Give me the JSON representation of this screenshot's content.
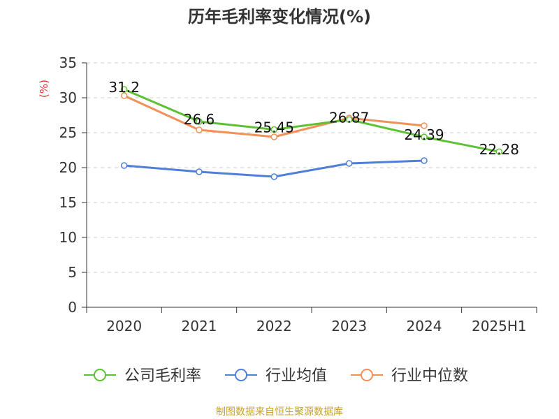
{
  "chart_data": {
    "type": "line",
    "title": "历年毛利率变化情况(%)",
    "ylabel": "(%)",
    "categories": [
      "2020",
      "2021",
      "2022",
      "2023",
      "2024",
      "2025H1"
    ],
    "yticks": [
      "0",
      "5",
      "10",
      "15",
      "20",
      "25",
      "30",
      "35"
    ],
    "ylim": [
      0,
      35
    ],
    "grid": true,
    "legend_placement": "bottom",
    "series": [
      {
        "name": "公司毛利率",
        "color": "#5cc133",
        "values": [
          31.2,
          26.6,
          25.45,
          26.87,
          24.39,
          22.28
        ],
        "labels": [
          "31.2",
          "26.6",
          "25.45",
          "26.87",
          "24.39",
          "22.28"
        ]
      },
      {
        "name": "行业均值",
        "color": "#4f7fd8",
        "values": [
          20.3,
          19.4,
          18.7,
          20.6,
          21.0,
          null
        ]
      },
      {
        "name": "行业中位数",
        "color": "#f19158",
        "values": [
          30.3,
          25.4,
          24.4,
          27.1,
          26.0,
          null
        ]
      }
    ],
    "source": "制图数据来自恒生聚源数据库",
    "colors": {
      "axis": "#333333",
      "grid": "#cccccc",
      "unit": "#e03030",
      "source": "#c9a227"
    }
  }
}
